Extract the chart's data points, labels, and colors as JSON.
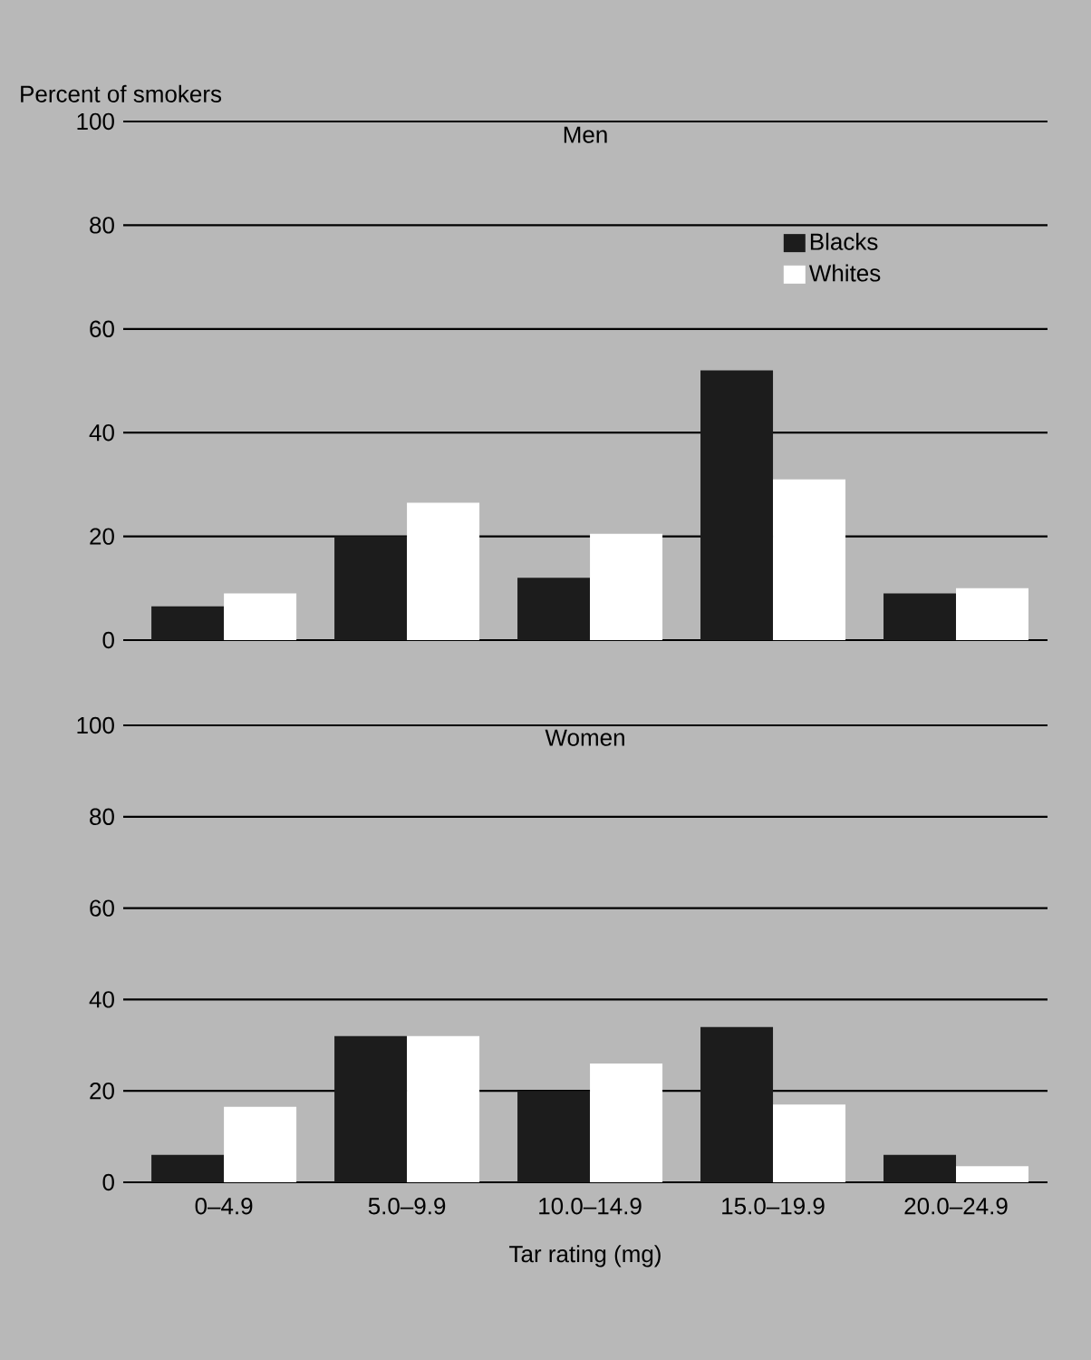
{
  "chart_data": [
    {
      "type": "bar",
      "title": "Men",
      "ylabel": "Percent of smokers",
      "categories": [
        null,
        null,
        null,
        null,
        null
      ],
      "series": [
        {
          "name": "Blacks",
          "color": "#1c1c1c",
          "values": [
            6.5,
            20,
            12,
            52,
            9
          ]
        },
        {
          "name": "Whites",
          "color": "#ffffff",
          "values": [
            9,
            26.5,
            20.5,
            31,
            10
          ]
        }
      ],
      "ylim": [
        0,
        100
      ],
      "yticks": [
        0,
        20,
        40,
        60,
        80,
        100
      ],
      "grid": "y",
      "legend": "top right",
      "tick_labels": "y"
    },
    {
      "type": "bar",
      "title": "Women",
      "xlabel": "Tar rating (mg)",
      "categories": [
        "0–4.9",
        "5.0–9.9",
        "10.0–14.9",
        "15.0–19.9",
        "20.0–24.9"
      ],
      "series": [
        {
          "color": "#1c1c1c",
          "values": [
            6,
            32,
            20,
            34,
            6
          ]
        },
        {
          "color": "#ffffff",
          "values": [
            16.5,
            32,
            26,
            17,
            3.5
          ]
        }
      ],
      "ylim": [
        0,
        100
      ],
      "yticks": [
        0,
        20,
        40,
        60,
        80,
        100
      ],
      "grid": "y"
    }
  ]
}
